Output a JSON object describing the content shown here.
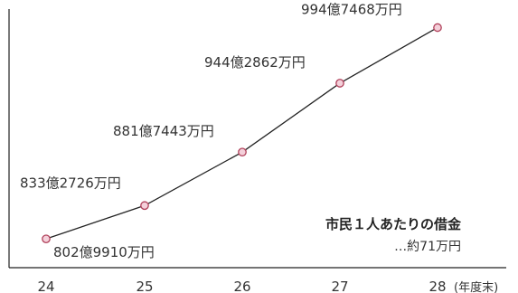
{
  "chart_data": {
    "type": "line",
    "x": [
      "24",
      "25",
      "26",
      "27",
      "28"
    ],
    "x_unit": "(年度末)",
    "values": [
      802.991,
      833.2726,
      881.7443,
      944.2862,
      994.7468
    ],
    "data_labels": [
      "802億9910万円",
      "833億2726万円",
      "881億7443万円",
      "944億2862万円",
      "994億7468万円"
    ],
    "ylim": [
      790,
      1005
    ],
    "grid": false,
    "annotation": {
      "title": "市民１人あたりの借金",
      "value": "…約71万円"
    }
  },
  "colors": {
    "line": "#222222",
    "marker_fill": "#f4d0da",
    "marker_stroke": "#b0405a",
    "axis": "#222222"
  }
}
